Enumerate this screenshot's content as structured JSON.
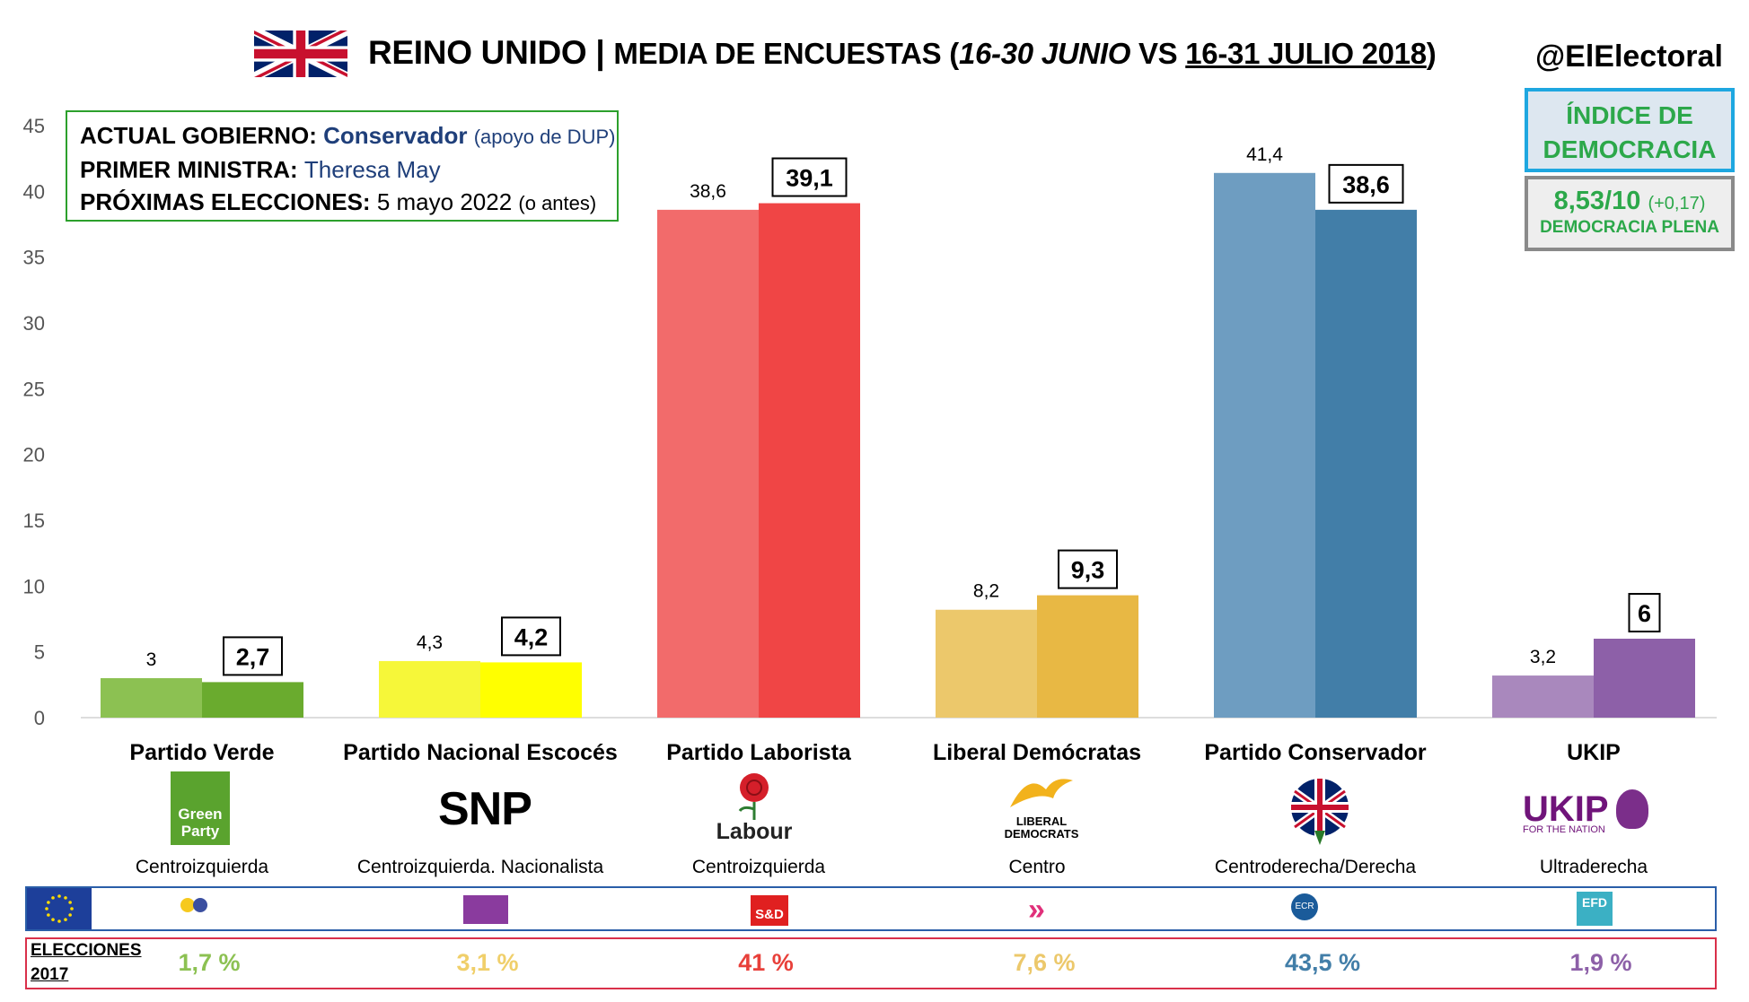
{
  "header": {
    "title_main": "REINO UNIDO",
    "title_sep": "|",
    "title_sub_a": "MEDIA DE ENCUESTAS (",
    "title_range_1": "16-30 JUNIO",
    "title_vs": " VS ",
    "title_range_2": "16-31 JULIO 2018",
    "title_close": ")",
    "handle": "@ElElectoral"
  },
  "info": {
    "gov_label": "ACTUAL GOBIERNO:",
    "gov_value": "Conservador",
    "gov_note": "(apoyo de DUP)",
    "pm_label": "PRIMER MINISTRA:",
    "pm_value": "Theresa May",
    "next_label": "PRÓXIMAS ELECCIONES:",
    "next_value": "5 mayo 2022",
    "next_note": "(o antes)"
  },
  "democracy": {
    "title_line1": "ÍNDICE DE",
    "title_line2": "DEMOCRACIA",
    "value": "8,53/10",
    "change": "(+0,17)",
    "category": "DEMOCRACIA PLENA"
  },
  "logos": {
    "green": "Green Party",
    "snp": "SNP",
    "labour": "Labour",
    "libdem_1": "LIBERAL",
    "libdem_2": "DEMOCRATS",
    "ukip": "UKIP",
    "ukip_sub": "FOR THE NATION",
    "sd": "S&D",
    "ecr": "ECR",
    "efd": "EFD"
  },
  "chart_data": {
    "type": "bar",
    "ylim": [
      0,
      45
    ],
    "yticks": [
      0,
      5,
      10,
      15,
      20,
      25,
      30,
      35,
      40,
      45
    ],
    "grid": false,
    "categories": [
      "Partido Verde",
      "Partido Nacional Escocés",
      "Partido Laborista",
      "Liberal Demócratas",
      "Partido Conservador",
      "UKIP"
    ],
    "series": [
      {
        "values": [
          3,
          4.3,
          38.6,
          8.2,
          41.4,
          3.2
        ],
        "labels": [
          "3",
          "4,3",
          "38,6",
          "8,2",
          "41,4",
          "3,2"
        ]
      },
      {
        "values": [
          2.7,
          4.2,
          39.1,
          9.3,
          38.6,
          6
        ],
        "labels": [
          "2,7",
          "4,2",
          "39,1",
          "9,3",
          "38,6",
          "6"
        ]
      }
    ],
    "colors_prev": [
      "#8cc152",
      "#f6f739",
      "#f26b6b",
      "#ecc86b",
      "#6e9dc1",
      "#a988bd"
    ],
    "colors_curr": [
      "#6aab2e",
      "#ffff00",
      "#f04545",
      "#e8b844",
      "#427ea8",
      "#8d60a8"
    ],
    "ideology": [
      "Centroizquierda",
      "Centroizquierda. Nacionalista",
      "Centroizquierda",
      "Centro",
      "Centroderecha/Derecha",
      "Ultraderecha"
    ],
    "elections_label_1": "ELECCIONES",
    "elections_label_2": "2017",
    "elections_2017": [
      "1,7 %",
      "3,1 %",
      "41 %",
      "7,6 %",
      "43,5 %",
      "1,9 %"
    ],
    "elections_colors": [
      "#8cc152",
      "#f0cf6a",
      "#e8403a",
      "#ecc86b",
      "#427ea8",
      "#8d60a8"
    ]
  }
}
